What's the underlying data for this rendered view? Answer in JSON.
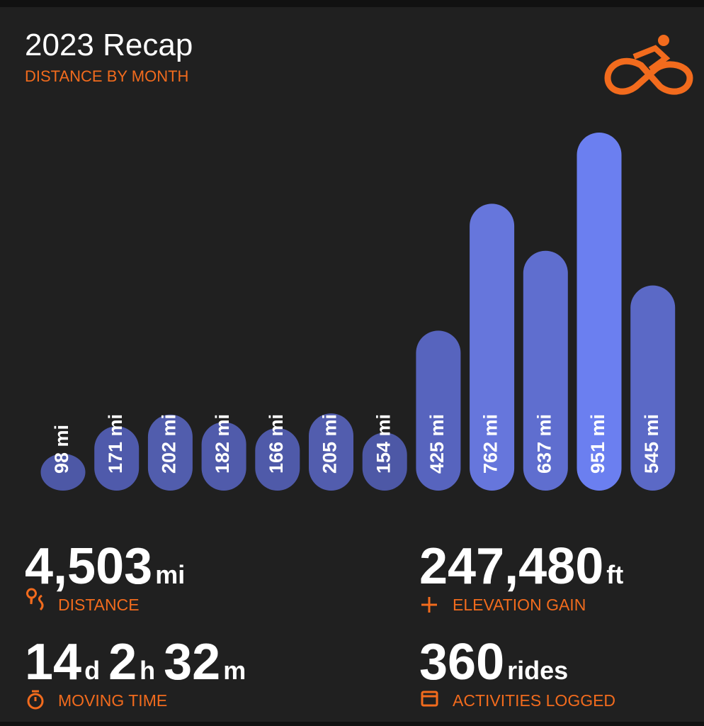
{
  "chart_data": {
    "type": "bar",
    "title": "2023 Recap",
    "subtitle": "DISTANCE BY MONTH",
    "categories": [
      null,
      null,
      null,
      null,
      null,
      null,
      null,
      null,
      null,
      null,
      null,
      null
    ],
    "values": [
      98,
      171,
      202,
      182,
      166,
      205,
      154,
      425,
      762,
      637,
      951,
      545
    ],
    "value_labels": [
      "98 mi",
      "171 mi",
      "202 mi",
      "182 mi",
      "166 mi",
      "205 mi",
      "154 mi",
      "425 mi",
      "762 mi",
      "637 mi",
      "951 mi",
      "545 mi"
    ],
    "colors": [
      "#4d58a6",
      "#4f5aab",
      "#515dad",
      "#505bab",
      "#4f5aa9",
      "#525dae",
      "#4d58a6",
      "#5764be",
      "#6676dc",
      "#5f6ecf",
      "#6b7ff0",
      "#5b69c6"
    ]
  },
  "stats": [
    {
      "parts": [
        {
          "value": "4,503",
          "unit": "mi"
        }
      ],
      "label": "DISTANCE"
    },
    {
      "parts": [
        {
          "value": "247,480",
          "unit": "ft"
        }
      ],
      "label": "ELEVATION GAIN"
    },
    {
      "parts": [
        {
          "value": "14",
          "unit": "d"
        },
        {
          "value": "2",
          "unit": "h"
        },
        {
          "value": "32",
          "unit": "m"
        }
      ],
      "label": "MOVING TIME"
    },
    {
      "parts": [
        {
          "value": "360",
          "unit": "rides"
        }
      ],
      "label": "ACTIVITIES LOGGED"
    }
  ]
}
